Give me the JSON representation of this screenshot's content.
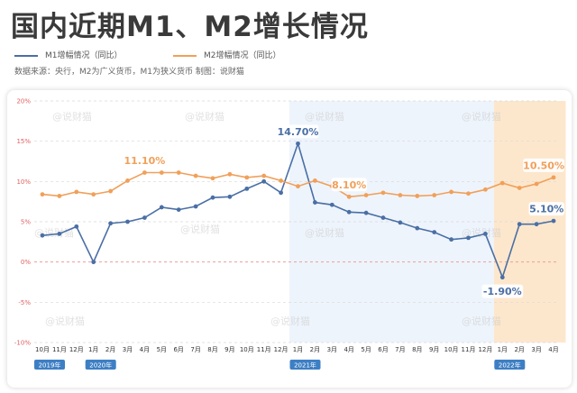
{
  "title": "国内近期M1、M2增长情况",
  "source": "数据来源：央行，M2为广义货币，M1为狭义货币   制图：说财猫",
  "colors": {
    "m1": "#4a6fa5",
    "m2": "#f0a05a",
    "band_2021": "#eef4fc",
    "band_2022": "#fde7cc",
    "zero_line": "#e8a0a0",
    "year_label_bg": "#3d7fc4"
  },
  "watermark": "@说财猫",
  "chart_data": {
    "type": "line",
    "title": "国内近期M1、M2增长情况",
    "ylim": [
      -10,
      20
    ],
    "yticks": [
      "-10%",
      "-5%",
      "0%",
      "5%",
      "10%",
      "15%",
      "20%"
    ],
    "categories": [
      "10月",
      "11月",
      "12月",
      "1月",
      "2月",
      "3月",
      "4月",
      "5月",
      "6月",
      "7月",
      "8月",
      "9月",
      "10月",
      "11月",
      "12月",
      "1月",
      "2月",
      "3月",
      "4月",
      "5月",
      "6月",
      "7月",
      "8月",
      "9月",
      "10月",
      "11月",
      "12月",
      "1月",
      "2月",
      "3月",
      "4月"
    ],
    "year_labels": [
      {
        "label": "2019年",
        "index": 0
      },
      {
        "label": "2020年",
        "index": 3
      },
      {
        "label": "2021年",
        "index": 15
      },
      {
        "label": "2022年",
        "index": 27
      }
    ],
    "series": [
      {
        "name": "M1增幅情况（同比）",
        "color": "#4a6fa5",
        "values": [
          3.3,
          3.5,
          4.4,
          0.0,
          4.8,
          5.0,
          5.5,
          6.8,
          6.5,
          6.9,
          8.0,
          8.1,
          9.1,
          10.0,
          8.6,
          14.7,
          7.4,
          7.1,
          6.2,
          6.1,
          5.5,
          4.9,
          4.2,
          3.7,
          2.8,
          3.0,
          3.5,
          -1.9,
          4.7,
          4.7,
          5.1
        ]
      },
      {
        "name": "M2增幅情况（同比）",
        "color": "#f0a05a",
        "values": [
          8.4,
          8.2,
          8.7,
          8.4,
          8.8,
          10.1,
          11.1,
          11.1,
          11.1,
          10.7,
          10.4,
          10.9,
          10.5,
          10.7,
          10.1,
          9.4,
          10.1,
          9.4,
          8.1,
          8.3,
          8.6,
          8.3,
          8.2,
          8.3,
          8.7,
          8.5,
          9.0,
          9.8,
          9.2,
          9.7,
          10.5
        ]
      }
    ],
    "annotations": [
      {
        "series": 1,
        "index": 6,
        "text": "11.10%"
      },
      {
        "series": 0,
        "index": 15,
        "text": "14.70%"
      },
      {
        "series": 1,
        "index": 18,
        "text": "8.10%"
      },
      {
        "series": 0,
        "index": 27,
        "text": "-1.90%"
      },
      {
        "series": 1,
        "index": 30,
        "text": "10.50%"
      },
      {
        "series": 0,
        "index": 30,
        "text": "5.10%"
      }
    ]
  }
}
